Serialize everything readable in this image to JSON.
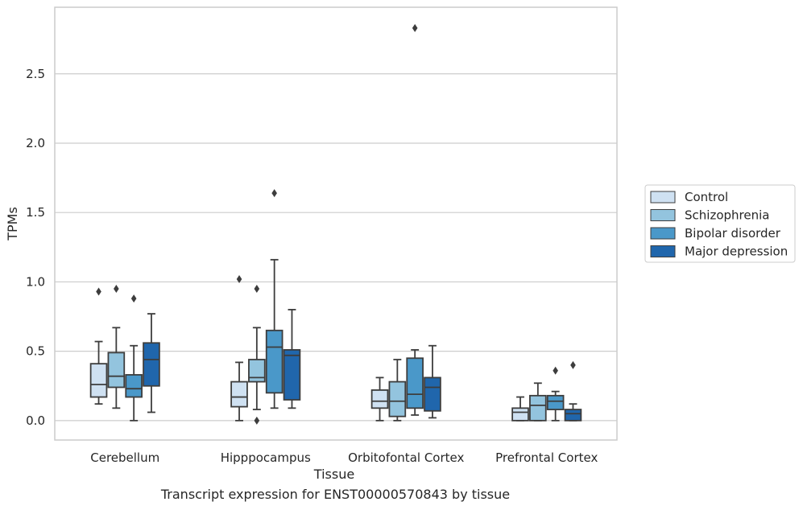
{
  "caption": "Transcript expression for ENST00000570843 by tissue",
  "chart_data": {
    "type": "boxplot",
    "xlabel": "Tissue",
    "ylabel": "TPMs",
    "categories": [
      "Cerebellum",
      "Hipppocampus",
      "Orbitofontal Cortex",
      "Prefrontal Cortex"
    ],
    "ylim": [
      -0.14,
      2.98
    ],
    "yticks": [
      "0.0",
      "0.5",
      "1.0",
      "1.5",
      "2.0",
      "2.5"
    ],
    "grid": true,
    "legend_position": "right",
    "series": [
      {
        "name": "Control",
        "color": "#cfe1f2",
        "boxes": [
          {
            "whislo": 0.12,
            "q1": 0.17,
            "med": 0.26,
            "q3": 0.41,
            "whishi": 0.57,
            "fliers": [
              0.93
            ]
          },
          {
            "whislo": 0.0,
            "q1": 0.1,
            "med": 0.17,
            "q3": 0.28,
            "whishi": 0.42,
            "fliers": [
              1.02
            ]
          },
          {
            "whislo": 0.0,
            "q1": 0.09,
            "med": 0.14,
            "q3": 0.22,
            "whishi": 0.31,
            "fliers": []
          },
          {
            "whislo": 0.0,
            "q1": 0.0,
            "med": 0.06,
            "q3": 0.09,
            "whishi": 0.17,
            "fliers": []
          }
        ]
      },
      {
        "name": "Schizophrenia",
        "color": "#93c4de",
        "boxes": [
          {
            "whislo": 0.09,
            "q1": 0.24,
            "med": 0.32,
            "q3": 0.49,
            "whishi": 0.67,
            "fliers": [
              0.95
            ]
          },
          {
            "whislo": 0.08,
            "q1": 0.28,
            "med": 0.31,
            "q3": 0.44,
            "whishi": 0.67,
            "fliers": [
              0.95,
              0.0
            ]
          },
          {
            "whislo": 0.0,
            "q1": 0.03,
            "med": 0.14,
            "q3": 0.28,
            "whishi": 0.44,
            "fliers": []
          },
          {
            "whislo": 0.0,
            "q1": 0.0,
            "med": 0.11,
            "q3": 0.18,
            "whishi": 0.27,
            "fliers": []
          }
        ]
      },
      {
        "name": "Bipolar disorder",
        "color": "#4a98c9",
        "boxes": [
          {
            "whislo": 0.0,
            "q1": 0.17,
            "med": 0.23,
            "q3": 0.33,
            "whishi": 0.54,
            "fliers": [
              0.88
            ]
          },
          {
            "whislo": 0.09,
            "q1": 0.2,
            "med": 0.53,
            "q3": 0.65,
            "whishi": 1.16,
            "fliers": [
              1.64
            ]
          },
          {
            "whislo": 0.04,
            "q1": 0.09,
            "med": 0.19,
            "q3": 0.45,
            "whishi": 0.51,
            "fliers": [
              2.83
            ]
          },
          {
            "whislo": 0.0,
            "q1": 0.08,
            "med": 0.14,
            "q3": 0.18,
            "whishi": 0.21,
            "fliers": [
              0.36
            ]
          }
        ]
      },
      {
        "name": "Major depression",
        "color": "#2066ac",
        "boxes": [
          {
            "whislo": 0.06,
            "q1": 0.25,
            "med": 0.44,
            "q3": 0.56,
            "whishi": 0.77,
            "fliers": []
          },
          {
            "whislo": 0.09,
            "q1": 0.15,
            "med": 0.47,
            "q3": 0.51,
            "whishi": 0.8,
            "fliers": []
          },
          {
            "whislo": 0.02,
            "q1": 0.07,
            "med": 0.24,
            "q3": 0.31,
            "whishi": 0.54,
            "fliers": []
          },
          {
            "whislo": 0.0,
            "q1": 0.0,
            "med": 0.05,
            "q3": 0.08,
            "whishi": 0.12,
            "fliers": [
              0.4
            ]
          }
        ]
      }
    ]
  }
}
